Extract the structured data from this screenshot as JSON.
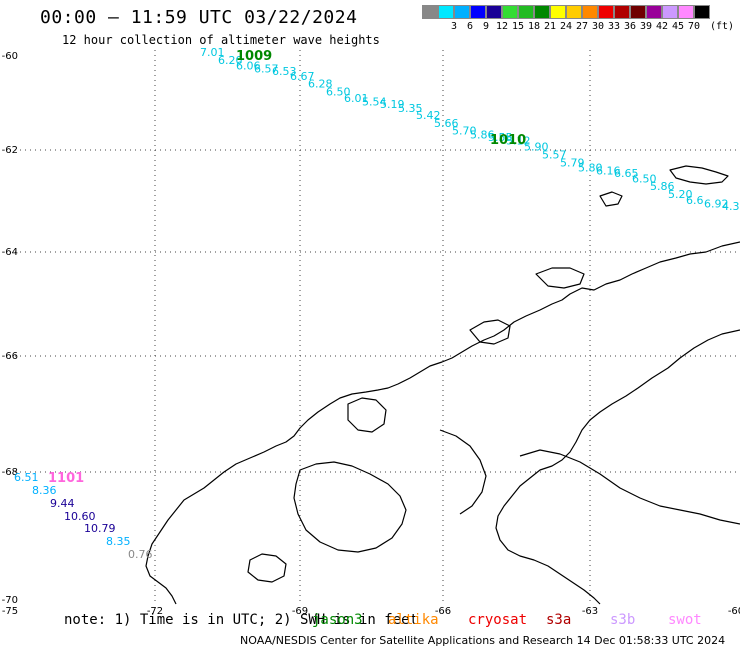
{
  "title": "00:00 — 11:59 UTC 03/22/2024",
  "subtitle": "12 hour collection of altimeter wave heights",
  "legend": {
    "unit": "(ft)",
    "bins": [
      {
        "label": "",
        "color": "#888888"
      },
      {
        "label": "3",
        "color": "#00e8ff"
      },
      {
        "label": "6",
        "color": "#00b0ff"
      },
      {
        "label": "9",
        "color": "#0000ff"
      },
      {
        "label": "12",
        "color": "#1a0096"
      },
      {
        "label": "15",
        "color": "#33dd33"
      },
      {
        "label": "18",
        "color": "#22bb22"
      },
      {
        "label": "21",
        "color": "#008800"
      },
      {
        "label": "24",
        "color": "#ffff00"
      },
      {
        "label": "27",
        "color": "#ffcc00"
      },
      {
        "label": "30",
        "color": "#ff8800"
      },
      {
        "label": "33",
        "color": "#ee0000"
      },
      {
        "label": "36",
        "color": "#b00000"
      },
      {
        "label": "39",
        "color": "#700000"
      },
      {
        "label": "42",
        "color": "#990099"
      },
      {
        "label": "45",
        "color": "#cc99ff"
      },
      {
        "label": "70",
        "color": "#ff88ff"
      },
      {
        "label": "",
        "color": "#000000"
      }
    ]
  },
  "axes": {
    "lon_ticks": [
      "-75",
      "-72",
      "-69",
      "-66",
      "-63",
      "-60"
    ],
    "lat_ticks": [
      "-60",
      "-62",
      "-64",
      "-66",
      "-68",
      "-70"
    ]
  },
  "tracks": [
    {
      "cycle": "1009",
      "cycle_color": "#008800",
      "color": "#00c8e0",
      "points": [
        "7.01",
        "6.20",
        "6.06",
        "6.57",
        "6.53",
        "6.67",
        "6.28",
        "6.50",
        "6.01",
        "5.54",
        "5.19",
        "5.35",
        "5.42",
        "5.66",
        "5.70",
        "5.86",
        "5.55",
        "5.12",
        "5.90",
        "5.57",
        "5.79",
        "5.80",
        "6.16",
        "6.65",
        "6.50",
        "5.86",
        "5.20",
        "6.6",
        "6.92",
        "4.3"
      ]
    },
    {
      "cycle": "1010",
      "cycle_color": "#008800"
    },
    {
      "cycle": "1101",
      "cycle_color": "#ff66dd",
      "points": [
        {
          "v": "6.51",
          "color": "#00b0ff"
        },
        {
          "v": "8.36",
          "color": "#00b0ff"
        },
        {
          "v": "9.44",
          "color": "#1a0096"
        },
        {
          "v": "10.60",
          "color": "#1a0096"
        },
        {
          "v": "10.79",
          "color": "#1a0096"
        },
        {
          "v": "8.35",
          "color": "#00b0ff"
        },
        {
          "v": "0.76",
          "color": "#888888"
        }
      ]
    }
  ],
  "footer": {
    "note": "note: 1) Time is in UTC; 2) SWH is in feet",
    "satellites": [
      {
        "name": "jason3",
        "color": "#008800"
      },
      {
        "name": "altika",
        "color": "#ff8800"
      },
      {
        "name": "cryosat",
        "color": "#ee0000"
      },
      {
        "name": "s3a",
        "color": "#b00000"
      },
      {
        "name": "s3b",
        "color": "#cc99ff"
      },
      {
        "name": "swot",
        "color": "#ff88ff"
      }
    ],
    "credit": "NOAA/NESDIS Center for Satellite Applications and Research    14 Dec 01:58:33 UTC 2024"
  }
}
